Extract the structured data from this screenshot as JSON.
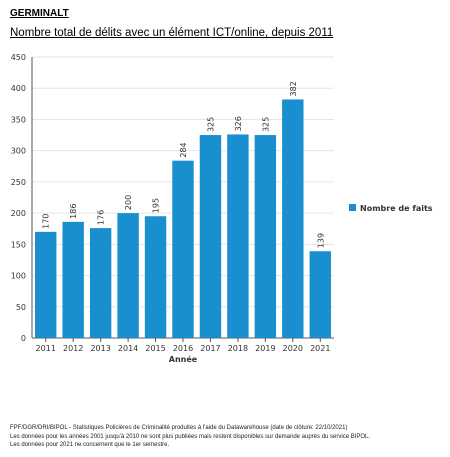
{
  "heading": "GERMINALT",
  "chart_data": {
    "type": "bar",
    "title": "Nombre total de délits avec un élément ICT/online, depuis 2011",
    "xlabel": "Année",
    "ylabel": "",
    "categories": [
      "2011",
      "2012",
      "2013",
      "2014",
      "2015",
      "2016",
      "2017",
      "2018",
      "2019",
      "2020",
      "2021"
    ],
    "series": [
      {
        "name": "Nombre de faits",
        "values": [
          170,
          186,
          176,
          200,
          195,
          284,
          325,
          326,
          325,
          382,
          139
        ]
      }
    ],
    "ylim": [
      0,
      450
    ],
    "yticks": [
      0,
      50,
      100,
      150,
      200,
      250,
      300,
      350,
      400,
      450
    ],
    "grid": true,
    "legend_position": "right",
    "colors": {
      "bar": "#1a8fcf",
      "grid": "#e6e6e6",
      "axis": "#555555",
      "text": "#333333"
    }
  },
  "footer": {
    "lines": [
      "FPF/DGR/DRI/BIPOL - Statistiques Policières de Criminalité produites à l'aide du Datawarehouse (date de clôture: 22/10/2021)",
      "Les données pour les années 2001 jusqu'à 2010 ne sont plus publiées mais restent disponibles sur demande auprès du service BIPOL.",
      "Les données pour 2021 ne concernent que le 1er semestre."
    ]
  }
}
